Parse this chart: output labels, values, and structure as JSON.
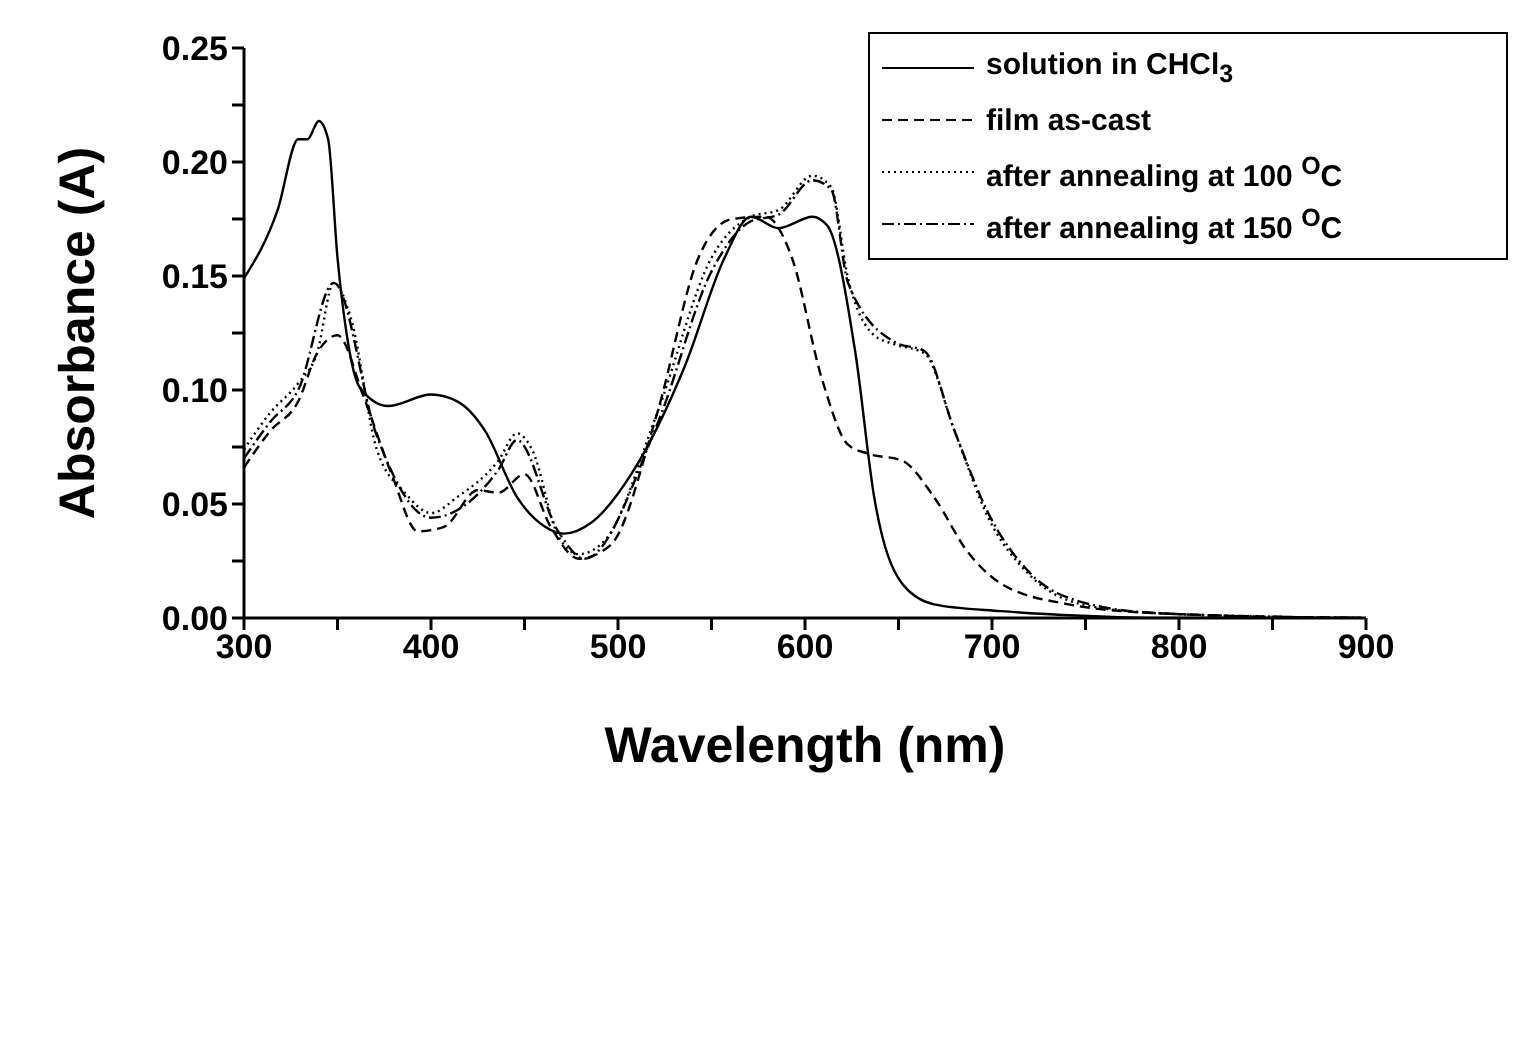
{
  "chart_data": {
    "type": "line",
    "xlabel": "Wavelength (nm)",
    "ylabel": "Absorbance (A)",
    "xlim": [
      300,
      900
    ],
    "ylim": [
      0,
      0.25
    ],
    "xticks": [
      300,
      {
        "value": 350,
        "label": null
      },
      400,
      {
        "value": 450,
        "label": null
      },
      500,
      {
        "value": 550,
        "label": null
      },
      600,
      {
        "value": 650,
        "label": null
      },
      700,
      {
        "value": 750,
        "label": null
      },
      800,
      {
        "value": 850,
        "label": null
      },
      900
    ],
    "yticks": [
      {
        "value": 0,
        "label": "0.00"
      },
      {
        "value": 0.025,
        "label": null
      },
      0.05,
      {
        "value": 0.075,
        "label": null
      },
      {
        "value": 0.1,
        "label": "0.10"
      },
      {
        "value": 0.125,
        "label": null
      },
      0.15,
      {
        "value": 0.175,
        "label": null
      },
      {
        "value": 0.2,
        "label": "0.20"
      },
      {
        "value": 0.225,
        "label": null
      },
      0.25
    ],
    "grid": false,
    "legend": "top right",
    "marker": "none",
    "series": [
      {
        "name": "solution in CHCl$_{3}$",
        "color": "#000000",
        "line_style": "solid",
        "x": [
          300,
          318,
          329,
          334,
          340,
          345,
          350,
          355,
          362,
          377,
          400,
          414,
          429,
          446,
          461,
          471,
          486,
          507,
          536,
          557,
          571,
          586,
          604,
          612,
          627,
          637,
          652,
          669,
          705,
          748,
          791,
          898
        ],
        "values": [
          0.149,
          0.179,
          0.21,
          0.21,
          0.218,
          0.21,
          0.158,
          0.124,
          0.101,
          0.093,
          0.098,
          0.095,
          0.082,
          0.053,
          0.04,
          0.037,
          0.042,
          0.063,
          0.111,
          0.158,
          0.176,
          0.171,
          0.176,
          0.172,
          0.116,
          0.053,
          0.015,
          0.006,
          0.003,
          0.001,
          0,
          0
        ]
      },
      {
        "name": "film as-cast",
        "color": "#000000",
        "line_style": "dashed",
        "x": [
          300,
          314,
          329,
          339,
          350,
          364,
          379,
          393,
          407,
          425,
          436,
          450,
          464,
          479,
          496,
          521,
          543,
          561,
          579,
          593,
          609,
          623,
          634,
          652,
          669,
          687,
          705,
          741,
          791,
          898
        ],
        "values": [
          0.066,
          0.082,
          0.095,
          0.116,
          0.124,
          0.097,
          0.063,
          0.038,
          0.04,
          0.056,
          0.055,
          0.063,
          0.04,
          0.026,
          0.032,
          0.09,
          0.158,
          0.175,
          0.176,
          0.158,
          0.105,
          0.076,
          0.072,
          0.069,
          0.053,
          0.029,
          0.015,
          0.006,
          0.002,
          0
        ]
      },
      {
        "name": "after annealing at 100 $^{O}$C",
        "color": "#000000",
        "line_style": "dotted",
        "x": [
          300,
          314,
          329,
          339,
          348,
          357,
          371,
          386,
          400,
          414,
          436,
          446,
          454,
          468,
          479,
          493,
          521,
          550,
          571,
          586,
          604,
          614,
          623,
          637,
          648,
          664,
          680,
          698,
          720,
          748,
          791,
          898
        ],
        "values": [
          0.074,
          0.09,
          0.103,
          0.116,
          0.147,
          0.132,
          0.074,
          0.055,
          0.046,
          0.053,
          0.069,
          0.081,
          0.074,
          0.036,
          0.028,
          0.034,
          0.09,
          0.158,
          0.176,
          0.179,
          0.194,
          0.189,
          0.149,
          0.124,
          0.12,
          0.116,
          0.082,
          0.044,
          0.019,
          0.006,
          0.002,
          0
        ]
      },
      {
        "name": "after annealing at 150 $^{O}$C",
        "color": "#000000",
        "line_style": "dashdot",
        "x": [
          300,
          314,
          329,
          348,
          371,
          400,
          436,
          446,
          468,
          482,
          521,
          550,
          571,
          586,
          604,
          614,
          623,
          648,
          664,
          680,
          698,
          720,
          748,
          791,
          898
        ],
        "values": [
          0.07,
          0.086,
          0.1,
          0.147,
          0.08,
          0.044,
          0.065,
          0.078,
          0.038,
          0.026,
          0.085,
          0.152,
          0.174,
          0.177,
          0.192,
          0.188,
          0.147,
          0.121,
          0.117,
          0.082,
          0.046,
          0.02,
          0.007,
          0.002,
          0
        ]
      }
    ]
  }
}
